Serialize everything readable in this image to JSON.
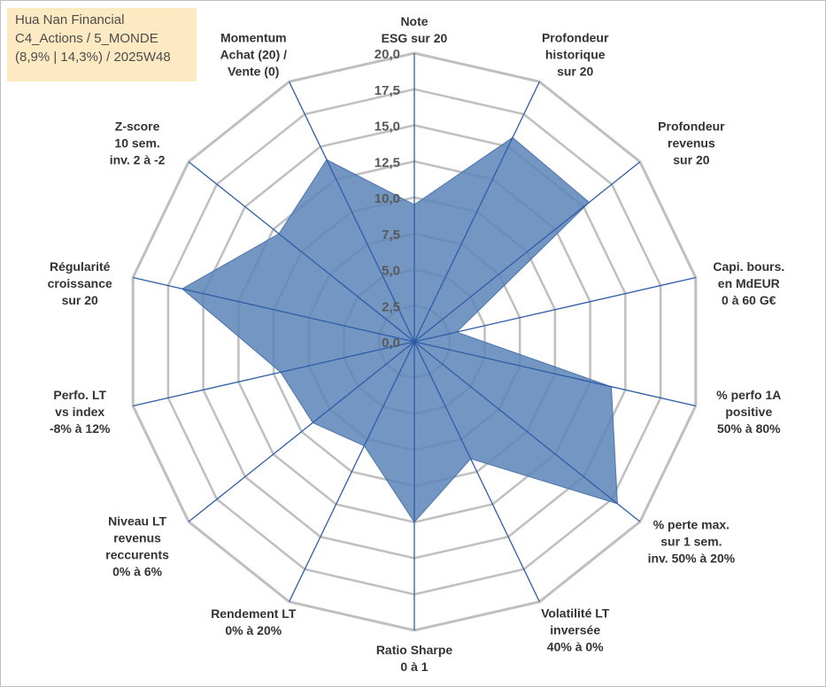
{
  "info_box": {
    "line1": "Hua Nan Financial",
    "line2": "C4_Actions / 5_MONDE",
    "line3": "(8,9% | 14,3%) / 2025W48"
  },
  "chart_data": {
    "type": "radar",
    "rmax": 20,
    "ticks": [
      "0,0",
      "2,5",
      "5,0",
      "7,5",
      "10,0",
      "12,5",
      "15,0",
      "17,5",
      "20,0"
    ],
    "axes": [
      {
        "label": [
          "Note",
          "ESG sur 20"
        ]
      },
      {
        "label": [
          "Profondeur",
          "historique",
          "sur 20"
        ]
      },
      {
        "label": [
          "Profondeur",
          "revenus",
          "sur 20"
        ]
      },
      {
        "label": [
          "Capi. bours.",
          "en MdEUR",
          "0 à 60 G€"
        ]
      },
      {
        "label": [
          "% perfo 1A",
          "positive",
          "50% à 80%"
        ]
      },
      {
        "label": [
          "% perte max.",
          "sur 1 sem.",
          "inv. 50% à 20%"
        ]
      },
      {
        "label": [
          "Volatilité LT",
          "inversée",
          "40% à 0%"
        ]
      },
      {
        "label": [
          "Ratio Sharpe",
          "0 à 1"
        ]
      },
      {
        "label": [
          "Rendement LT",
          "0% à 20%"
        ]
      },
      {
        "label": [
          "Niveau LT",
          "revenus",
          "reccurents",
          "0% à 6%"
        ]
      },
      {
        "label": [
          "Perfo. LT",
          "vs index",
          "-8% à 12%"
        ]
      },
      {
        "label": [
          "Régularité",
          "croissance",
          "sur 20"
        ]
      },
      {
        "label": [
          "Z-score",
          "10 sem.",
          "inv. 2 à -2"
        ]
      },
      {
        "label": [
          "Momentum",
          "Achat (20) /",
          "Vente (0)"
        ]
      }
    ],
    "series": [
      {
        "values": [
          9.5,
          15.7,
          15.5,
          3.0,
          14.0,
          18.0,
          9.0,
          12.5,
          8.0,
          9.0,
          9.5,
          16.5,
          12.0,
          14.0
        ]
      }
    ],
    "colors": {
      "fill": "#5b84b8",
      "stroke": "#4a75ad",
      "grid": "#bfbfbf",
      "axis": "#2f5da8"
    },
    "grid": true,
    "legend": "none"
  }
}
